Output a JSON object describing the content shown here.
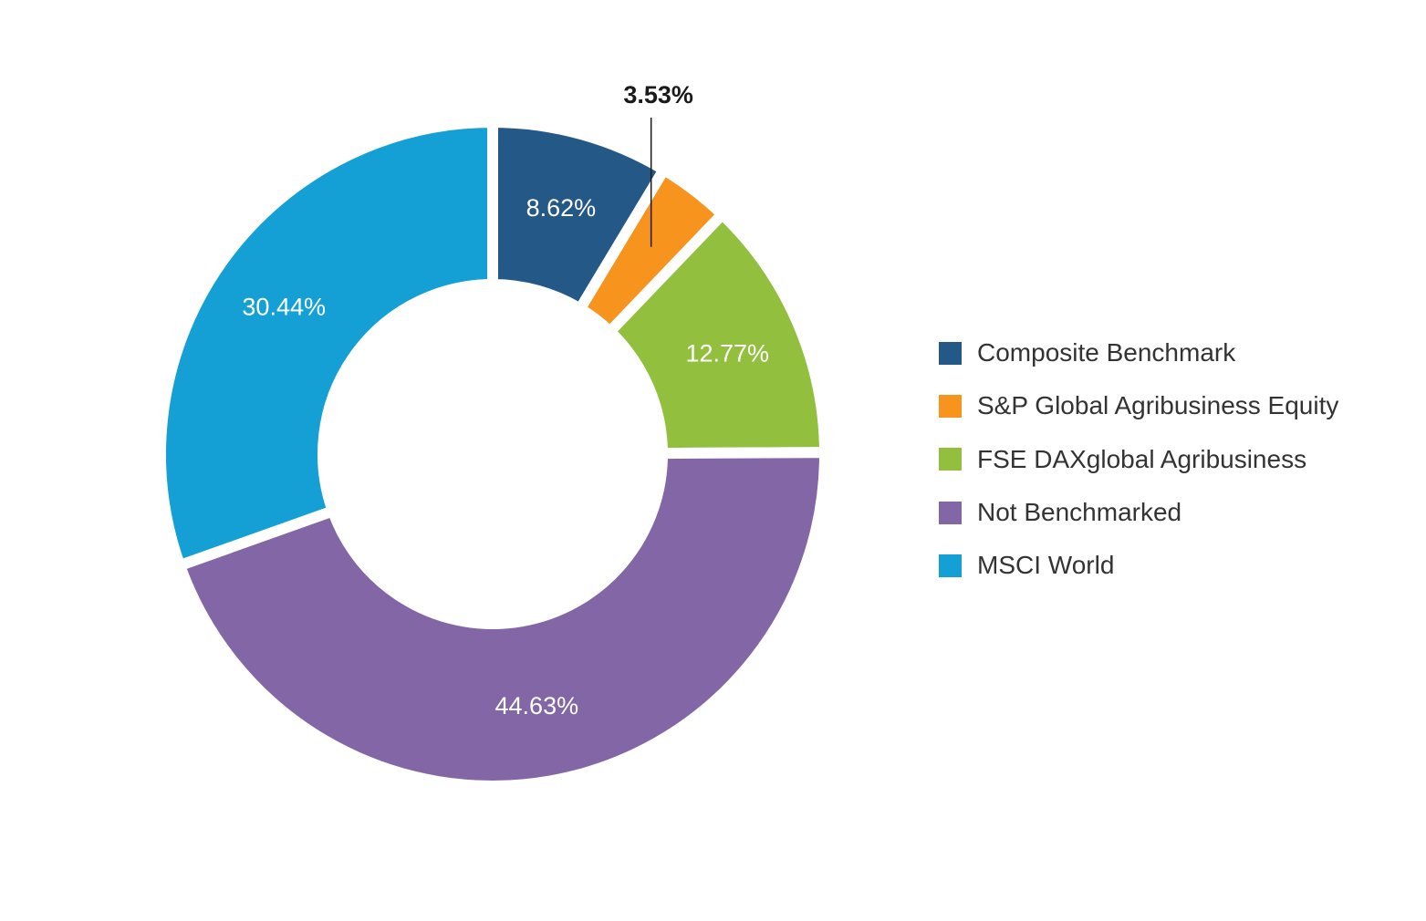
{
  "chart_data": {
    "type": "pie",
    "donut": true,
    "legend_position": "right",
    "slices": [
      {
        "name": "Composite Benchmark",
        "value": 8.62,
        "label": "8.62%",
        "color": "#245987",
        "label_placement": "inside"
      },
      {
        "name": "S&P Global Agribusiness Equity",
        "value": 3.53,
        "label": "3.53%",
        "color": "#f7941d",
        "label_placement": "outside"
      },
      {
        "name": "FSE DAXglobal Agribusiness",
        "value": 12.77,
        "label": "12.77%",
        "color": "#92c03e",
        "label_placement": "inside"
      },
      {
        "name": "Not Benchmarked",
        "value": 44.63,
        "label": "44.63%",
        "color": "#8266a5",
        "label_placement": "inside"
      },
      {
        "name": "MSCI World",
        "value": 30.44,
        "label": "30.44%",
        "color": "#14a0d4",
        "label_placement": "inside"
      }
    ]
  }
}
